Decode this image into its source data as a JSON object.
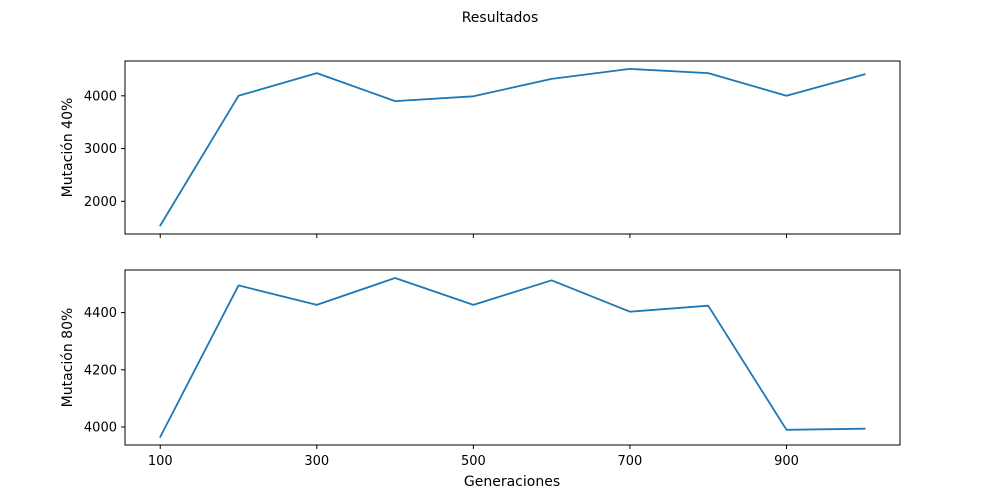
{
  "figure": {
    "title": "Resultados",
    "xlabel": "Generaciones",
    "line_color": "#1f77b4"
  },
  "chart_data": [
    {
      "type": "line",
      "title": "",
      "xlabel": "Generaciones",
      "ylabel": "Mutación 40%",
      "x": [
        100,
        200,
        300,
        400,
        500,
        600,
        700,
        800,
        900,
        1000
      ],
      "values": [
        1540,
        4000,
        4430,
        3900,
        3990,
        4320,
        4510,
        4430,
        4000,
        4410
      ],
      "xlim": [
        55,
        1045
      ],
      "ylim": [
        1380,
        4660
      ],
      "xticks": [
        100,
        300,
        500,
        700,
        900
      ],
      "yticks": [
        2000,
        3000,
        4000
      ],
      "show_xtick_labels": false,
      "grid": false
    },
    {
      "type": "line",
      "title": "",
      "xlabel": "Generaciones",
      "ylabel": "Mutación 80%",
      "x": [
        100,
        200,
        300,
        400,
        500,
        600,
        700,
        800,
        900,
        1000
      ],
      "values": [
        3965,
        4495,
        4427,
        4521,
        4427,
        4513,
        4403,
        4424,
        3990,
        3994
      ],
      "xlim": [
        55,
        1045
      ],
      "ylim": [
        3937,
        4549
      ],
      "xticks": [
        100,
        300,
        500,
        700,
        900
      ],
      "yticks": [
        4000,
        4200,
        4400
      ],
      "show_xtick_labels": true,
      "grid": false
    }
  ]
}
